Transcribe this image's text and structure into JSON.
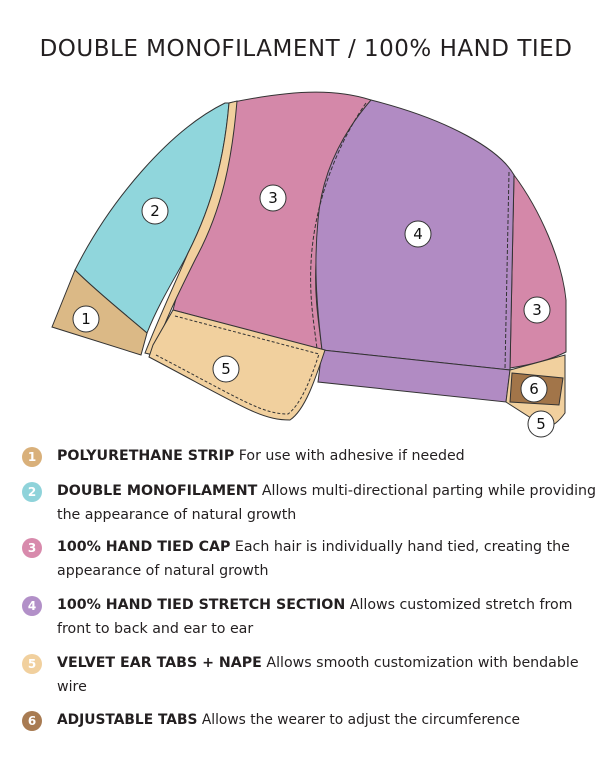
{
  "title": "DOUBLE MONOFILAMENT / 100% HAND TIED",
  "colors": {
    "polyurethane": "#dbb986",
    "monofilament": "#90d6dc",
    "hand_tied": "#d488a9",
    "stretch": "#b18bc3",
    "velvet": "#f1d09e",
    "adjustable": "#a27549"
  },
  "diagram_labels": {
    "strip": "1",
    "mono": "2",
    "hand_tied_top": "3",
    "stretch": "4",
    "hand_tied_back": "3",
    "ear_tab": "5",
    "adjust_tab": "6",
    "nape": "5"
  },
  "legend": [
    {
      "num": "1",
      "title": "POLYURETHANE STRIP",
      "desc": "For use with adhesive if needed",
      "color": "#d9b07a"
    },
    {
      "num": "2",
      "title": "DOUBLE MONOFILAMENT",
      "desc": "Allows multi-directional parting while providing the appearance of natural growth",
      "color": "#8fd3da"
    },
    {
      "num": "3",
      "title": "100% HAND TIED CAP",
      "desc": "Each hair is individually hand tied, creating the appearance of natural growth",
      "color": "#d88aac"
    },
    {
      "num": "4",
      "title": "100% HAND TIED STRETCH SECTION",
      "desc": "Allows customized stretch from front to back and ear to ear",
      "color": "#b290c8"
    },
    {
      "num": "5",
      "title": "VELVET EAR TABS + NAPE",
      "desc": "Allows smooth customization with bendable wire",
      "color": "#f1d09e"
    },
    {
      "num": "6",
      "title": "ADJUSTABLE TABS",
      "desc": "Allows the wearer to adjust the circumference",
      "color": "#a87b52"
    }
  ]
}
